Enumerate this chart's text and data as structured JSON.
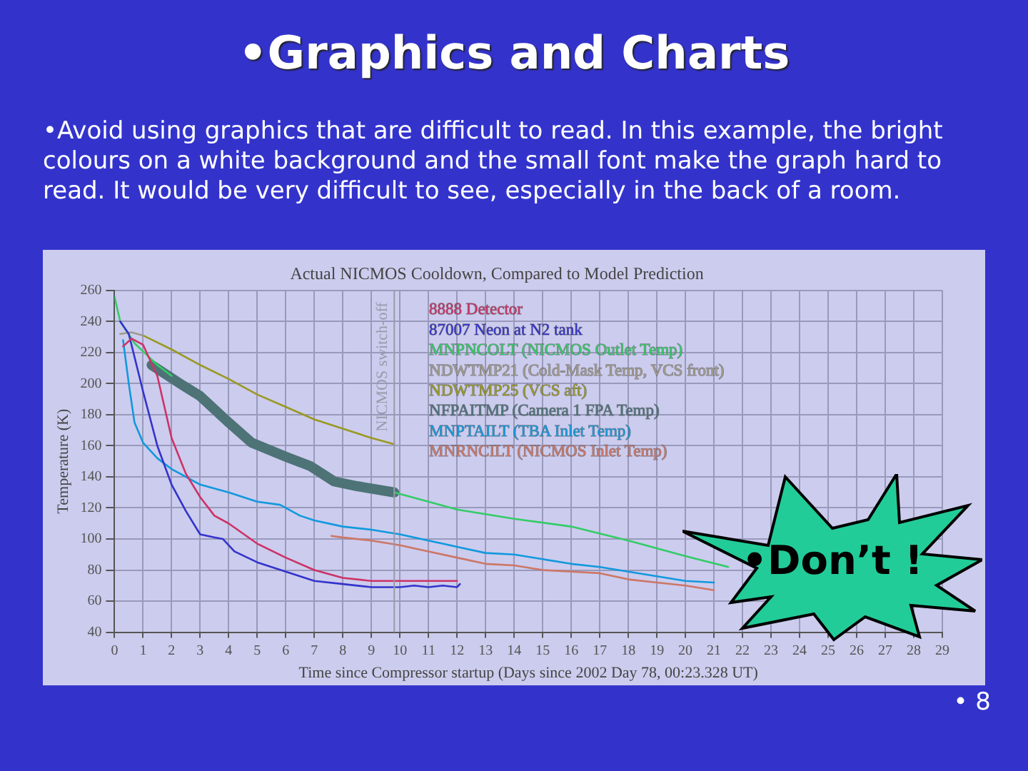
{
  "chart_data": {
    "type": "line",
    "title": "•Graphics and Charts",
    "subtitle": "Actual NICMOS Cooldown, Compared to Model Prediction",
    "xlabel": "Time since Compressor startup (Days since 2002 Day 78, 00:23.328 UT)",
    "ylabel": "Temperature (K)",
    "annotations": [
      "•Avoid using graphics that are difficult to read. In this example, the bright colours on a white background and the small font make the graph hard to read. It would be very difficult to see, especially in the back of a room.",
      "•Don’t !",
      "• 8"
    ],
    "xlim": [
      0,
      29
    ],
    "xticks": [
      0,
      1,
      2,
      3,
      4,
      5,
      6,
      7,
      8,
      9,
      10,
      11,
      12,
      13,
      14,
      15,
      16,
      17,
      18,
      19,
      20,
      21,
      22,
      23,
      24,
      25,
      26,
      27,
      28,
      29
    ],
    "ylim": [
      40,
      260
    ],
    "yticks": [
      40,
      60,
      80,
      100,
      120,
      140,
      160,
      180,
      200,
      220,
      240,
      260
    ],
    "grid": true,
    "legend": "top",
    "marker": "none",
    "line_style": "solid",
    "ref_lines": [
      {
        "axis": "x",
        "value": 9.8,
        "label": "NICMOS switch-off",
        "color": "#9999aa"
      }
    ],
    "series": [
      {
        "name": "8888 Detector",
        "color": "#cc3366",
        "x": [
          0.3,
          0.6,
          1,
          1.5,
          2,
          2.5,
          3,
          3.5,
          4,
          5,
          6,
          7,
          8,
          9,
          10,
          11,
          12
        ],
        "values": [
          224,
          229,
          225,
          205,
          165,
          142,
          127,
          115,
          110,
          97,
          88,
          80,
          75,
          73,
          73,
          73,
          73
        ]
      },
      {
        "name": "87007 Neon at N2 tank",
        "color": "#3333cc",
        "x": [
          0.2,
          0.5,
          1,
          1.5,
          2,
          2.5,
          3,
          3.5,
          3.8,
          4.2,
          5,
          6,
          7,
          8,
          9,
          10,
          10.5,
          11,
          11.5,
          12,
          12.1
        ],
        "values": [
          240,
          232,
          195,
          160,
          135,
          118,
          103,
          101,
          100,
          92,
          85,
          79,
          73,
          71,
          69,
          69,
          70,
          69,
          70,
          69,
          71
        ]
      },
      {
        "name": "MNPNCOLT (NICMOS Outlet Temp)",
        "color": "#33cc66",
        "x": [
          0,
          0.2,
          0.7,
          1.5,
          2,
          2.01,
          9.8,
          11,
          12,
          13,
          14,
          16,
          18,
          20,
          21.5
        ],
        "values": [
          256,
          240,
          226,
          212,
          205,
          null,
          130,
          124,
          119,
          116,
          113,
          108,
          99,
          89,
          82
        ]
      },
      {
        "name": "NDWTMP21 (Cold-Mask Temp, VCS front)",
        "color": "#a09a8a",
        "x": [
          0.2,
          0.6,
          1
        ],
        "values": [
          232,
          233,
          231
        ]
      },
      {
        "name": "NDWTMP25 (VCS aft)",
        "color": "#999922",
        "x": [
          1,
          2,
          3,
          4,
          5,
          6,
          7,
          8,
          9,
          9.8
        ],
        "values": [
          231,
          222,
          212,
          203,
          193,
          185,
          177,
          171,
          165,
          161
        ]
      },
      {
        "name": "NFPAITMP (Camera 1 FPA Temp)",
        "color": "#4d7377",
        "x": [
          1.3,
          2.3,
          3,
          4,
          4.8,
          6,
          6.85,
          7.7,
          8.5,
          9.8
        ],
        "values": [
          212,
          200,
          192,
          175,
          162,
          153,
          147,
          137,
          134,
          130
        ]
      },
      {
        "name": "MNPTAILT (TBA Inlet Temp)",
        "color": "#1199dd",
        "x": [
          0.3,
          0.5,
          0.7,
          1,
          1.5,
          2,
          3,
          4,
          5,
          5.8,
          6.5,
          7,
          8,
          9,
          10,
          11,
          12,
          13,
          14,
          15,
          16,
          17,
          18,
          19,
          20,
          21
        ],
        "values": [
          228,
          200,
          175,
          162,
          152,
          145,
          135,
          130,
          124,
          122,
          115,
          112,
          108,
          106,
          103,
          99,
          95,
          91,
          90,
          87,
          84,
          82,
          79,
          76,
          73,
          72
        ]
      },
      {
        "name": "MNRNCILT (NICMOS Inlet Temp)",
        "color": "#cc7766",
        "x": [
          7.6,
          8,
          9,
          10,
          11,
          12,
          13,
          14,
          15,
          16,
          17,
          18,
          19,
          20,
          21
        ],
        "values": [
          102,
          101,
          99,
          96,
          92,
          88,
          84,
          83,
          80,
          79,
          78,
          74,
          72,
          70,
          67
        ]
      }
    ]
  }
}
